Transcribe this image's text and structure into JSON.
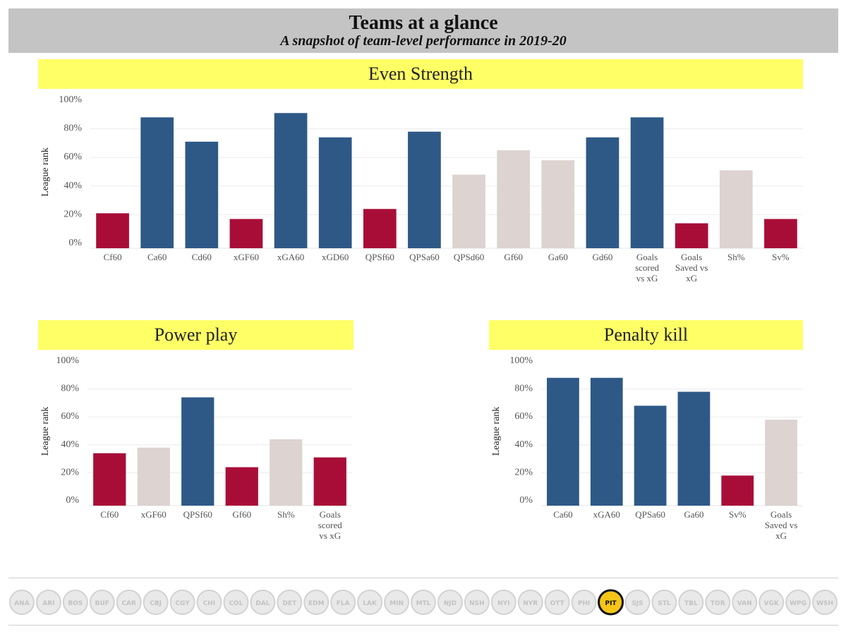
{
  "header": {
    "title": "Teams at a glance",
    "subtitle": "A snapshot of team-level performance in 2019-20"
  },
  "colors": {
    "high": "#2e5986",
    "mid": "#ddd3d1",
    "low": "#a80d38",
    "section_bar": "#ffff66",
    "header_bar": "#c4c4c4"
  },
  "chart_data": [
    {
      "id": "even-strength",
      "type": "bar",
      "title": "Even Strength",
      "ylabel": "League rank",
      "ylim": [
        0,
        100
      ],
      "yticks": [
        "0%",
        "20%",
        "40%",
        "60%",
        "80%",
        "100%"
      ],
      "categories": [
        "Cf60",
        "Ca60",
        "Cd60",
        "xGF60",
        "xGA60",
        "xGD60",
        "QPSf60",
        "QPSa60",
        "QPSd60",
        "Gf60",
        "Ga60",
        "Gd60",
        "Goals scored vs xG",
        "Goals Saved vs xG",
        "Sh%",
        "Sv%"
      ],
      "values": [
        20,
        87,
        70,
        16,
        90,
        73,
        23,
        77,
        47,
        64,
        57,
        73,
        87,
        13,
        50,
        16
      ],
      "tiers": [
        "low",
        "high",
        "high",
        "low",
        "high",
        "high",
        "low",
        "high",
        "mid",
        "mid",
        "mid",
        "high",
        "high",
        "low",
        "mid",
        "low"
      ]
    },
    {
      "id": "power-play",
      "type": "bar",
      "title": "Power play",
      "ylabel": "League rank",
      "ylim": [
        0,
        100
      ],
      "yticks": [
        "0%",
        "20%",
        "40%",
        "60%",
        "80%",
        "100%"
      ],
      "categories": [
        "Cf60",
        "xGF60",
        "QPSf60",
        "Gf60",
        "Sh%",
        "Goals scored vs xG"
      ],
      "values": [
        33,
        37,
        73,
        23,
        43,
        30
      ],
      "tiers": [
        "low",
        "mid",
        "high",
        "low",
        "mid",
        "low"
      ]
    },
    {
      "id": "penalty-kill",
      "type": "bar",
      "title": "Penalty kill",
      "ylabel": "League rank",
      "ylim": [
        0,
        100
      ],
      "yticks": [
        "0%",
        "20%",
        "40%",
        "60%",
        "80%",
        "100%"
      ],
      "categories": [
        "Ca60",
        "xGA60",
        "QPSa60",
        "Ga60",
        "Sv%",
        "Goals Saved vs xG"
      ],
      "values": [
        87,
        87,
        67,
        77,
        17,
        57
      ],
      "tiers": [
        "high",
        "high",
        "high",
        "high",
        "low",
        "mid"
      ]
    }
  ],
  "logos": {
    "teams": [
      "ANA",
      "ARI",
      "BOS",
      "BUF",
      "CAR",
      "CBJ",
      "CGY",
      "CHI",
      "COL",
      "DAL",
      "DET",
      "EDM",
      "FLA",
      "LAK",
      "MIN",
      "MTL",
      "NJD",
      "NSH",
      "NYI",
      "NYR",
      "OTT",
      "PHI",
      "PIT",
      "SJS",
      "STL",
      "TBL",
      "TOR",
      "VAN",
      "VGK",
      "WPG",
      "WSH"
    ],
    "selected": "PIT",
    "icon_name": "team-logo-icon"
  }
}
